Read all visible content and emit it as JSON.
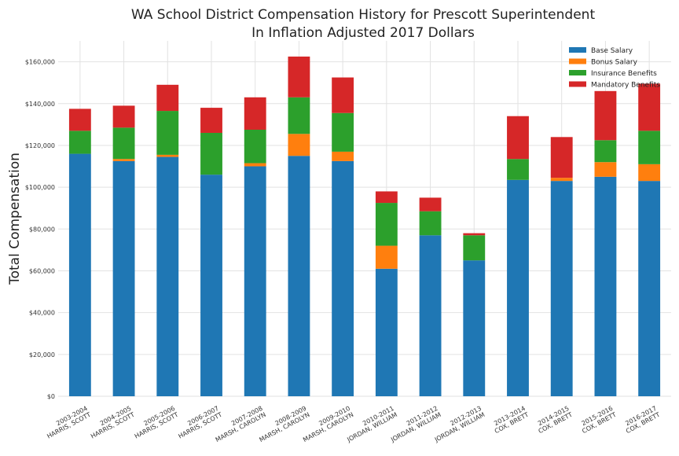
{
  "chart_data": {
    "type": "bar",
    "stacked": true,
    "title": "WA School District Compensation History for Prescott Superintendent",
    "subtitle": "In Inflation Adjusted 2017 Dollars",
    "xlabel": "",
    "ylabel": "Total Compensation",
    "ylim": [
      0,
      170000
    ],
    "yticks": [
      0,
      20000,
      40000,
      60000,
      80000,
      100000,
      120000,
      140000,
      160000
    ],
    "ytick_labels": [
      "$0",
      "$20,000",
      "$40,000",
      "$60,000",
      "$80,000",
      "$100,000",
      "$120,000",
      "$140,000",
      "$160,000"
    ],
    "grid": true,
    "legend_position": "top-right",
    "categories": [
      [
        "2003-2004",
        "HARRIS, SCOTT"
      ],
      [
        "2004-2005",
        "HARRIS, SCOTT"
      ],
      [
        "2005-2006",
        "HARRIS, SCOTT"
      ],
      [
        "2006-2007",
        "HARRIS, SCOTT"
      ],
      [
        "2007-2008",
        "MARSH, CAROLYN"
      ],
      [
        "2008-2009",
        "MARSH, CAROLYN"
      ],
      [
        "2009-2010",
        "MARSH, CAROLYN"
      ],
      [
        "2010-2011",
        "JORDAN, WILLIAM"
      ],
      [
        "2011-2012",
        "JORDAN, WILLIAM"
      ],
      [
        "2012-2013",
        "JORDAN, WILLIAM"
      ],
      [
        "2013-2014",
        "COX, BRETT"
      ],
      [
        "2014-2015",
        "COX, BRETT"
      ],
      [
        "2015-2016",
        "COX, BRETT"
      ],
      [
        "2016-2017",
        "COX, BRETT"
      ]
    ],
    "series": [
      {
        "name": "Base Salary",
        "color": "#1f77b4",
        "values": [
          116000,
          112500,
          114500,
          106000,
          110000,
          115000,
          112500,
          61000,
          77000,
          65000,
          103500,
          103000,
          105000,
          103000
        ]
      },
      {
        "name": "Bonus Salary",
        "color": "#ff7f0e",
        "values": [
          0,
          1000,
          1000,
          0,
          1500,
          10500,
          4500,
          11000,
          0,
          0,
          0,
          1500,
          7000,
          8000
        ]
      },
      {
        "name": "Insurance Benefits",
        "color": "#2ca02c",
        "values": [
          11000,
          15000,
          21000,
          20000,
          16000,
          17500,
          18500,
          20500,
          11500,
          12000,
          10000,
          0,
          10500,
          16000
        ]
      },
      {
        "name": "Mandatory Benefits",
        "color": "#d62728",
        "values": [
          10500,
          10500,
          12500,
          12000,
          15500,
          19500,
          17000,
          5500,
          6500,
          1000,
          20500,
          19500,
          23500,
          22500
        ]
      }
    ]
  }
}
